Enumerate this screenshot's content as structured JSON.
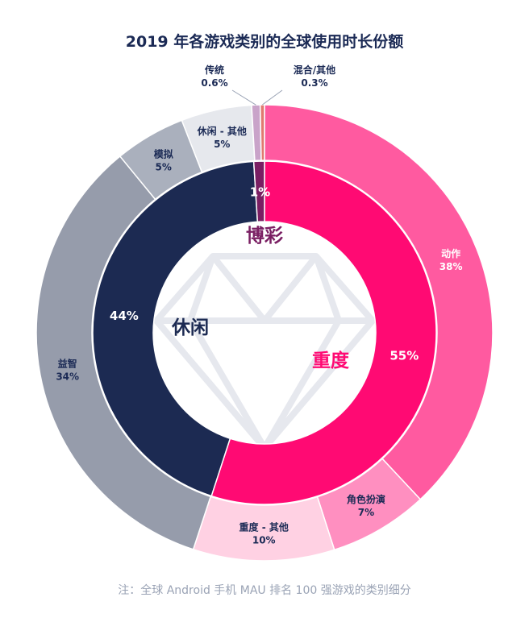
{
  "header": {
    "title": "2019 年各游戏类别的全球使用时长份额"
  },
  "footer": {
    "note": "注：全球 Android 手机 MAU 排名 100 强游戏的类别细分"
  },
  "center_labels": {
    "gambling": "博彩",
    "casual": "休闲",
    "hardcore": "重度"
  },
  "colors": {
    "hardcore_inner": "#ff0a73",
    "casual_inner": "#1c2a52",
    "gambling_inner": "#7a1f63",
    "action": "#ff5aa0",
    "rpg": "#ff8fc0",
    "hardcore_other": "#ffd1e3",
    "puzzle": "#969cab",
    "simulation": "#aab0bd",
    "casual_other": "#e6e8ed",
    "traditional": "#c9a3c9",
    "mixed": "#e07a70"
  },
  "chart_data": {
    "type": "donut",
    "title": "2019 年各游戏类别的全球使用时长份额",
    "inner": [
      {
        "name": "重度",
        "label": "55%",
        "value": 55
      },
      {
        "name": "休闲",
        "label": "44%",
        "value": 44
      },
      {
        "name": "博彩",
        "label": "1%",
        "value": 1
      }
    ],
    "outer": [
      {
        "name": "动作",
        "label": "38%",
        "value": 38,
        "parent": "重度"
      },
      {
        "name": "角色扮演",
        "label": "7%",
        "value": 7,
        "parent": "重度"
      },
      {
        "name": "重度 - 其他",
        "label": "10%",
        "value": 10,
        "parent": "重度"
      },
      {
        "name": "益智",
        "label": "34%",
        "value": 34,
        "parent": "休闲"
      },
      {
        "name": "模拟",
        "label": "5%",
        "value": 5,
        "parent": "休闲"
      },
      {
        "name": "休闲 - 其他",
        "label": "5%",
        "value": 5,
        "parent": "休闲"
      },
      {
        "name": "传统",
        "label": "0.6%",
        "value": 0.6,
        "parent": "博彩"
      },
      {
        "name": "混合/其他",
        "label": "0.3%",
        "value": 0.3,
        "parent": "博彩"
      }
    ]
  }
}
